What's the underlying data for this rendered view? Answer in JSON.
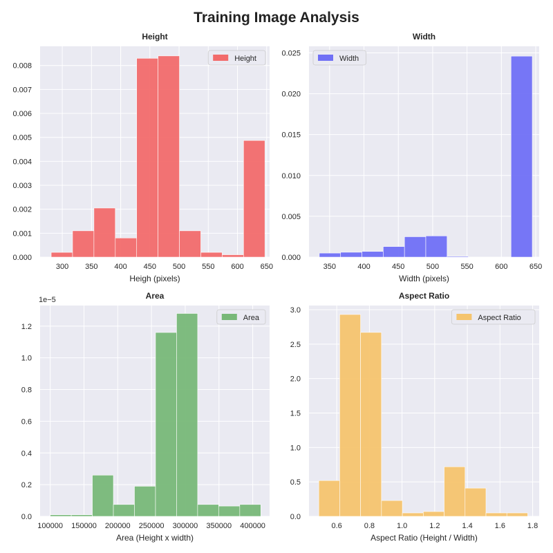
{
  "suptitle": "Training Image Analysis",
  "chart_data": [
    {
      "type": "bar",
      "title": "Height",
      "xlabel": "Heigh (pixels)",
      "ylabel": "",
      "legend": "Height",
      "legend_position": "top-right",
      "color": "#f26b6b",
      "grid": true,
      "xlim": [
        262,
        655
      ],
      "ylim": [
        0,
        0.0088
      ],
      "xticks": [
        300,
        350,
        400,
        450,
        500,
        550,
        600,
        650
      ],
      "xtick_labels": [
        "300",
        "350",
        "400",
        "450",
        "500",
        "550",
        "600",
        "650"
      ],
      "yticks": [
        0,
        0.001,
        0.002,
        0.003,
        0.004,
        0.005,
        0.006,
        0.007,
        0.008
      ],
      "ytick_labels": [
        "0.000",
        "0.001",
        "0.002",
        "0.003",
        "0.004",
        "0.005",
        "0.006",
        "0.007",
        "0.008"
      ],
      "y_offset_label": "",
      "bin_edges": [
        281,
        317.6,
        354.2,
        390.8,
        427.4,
        464,
        500.6,
        537.2,
        573.8,
        610.4,
        647
      ],
      "values": [
        0.0002,
        0.0011,
        0.00205,
        0.0008,
        0.0083,
        0.0084,
        0.0011,
        0.0002,
        0.0001,
        0.00487
      ]
    },
    {
      "type": "bar",
      "title": "Width",
      "xlabel": "Width (pixels)",
      "ylabel": "",
      "legend": "Width",
      "legend_position": "top-left",
      "color": "#7070f5",
      "grid": true,
      "xlim": [
        320,
        655
      ],
      "ylim": [
        0,
        0.0258
      ],
      "xticks": [
        350,
        400,
        450,
        500,
        550,
        600,
        650
      ],
      "xtick_labels": [
        "350",
        "400",
        "450",
        "500",
        "550",
        "600",
        "650"
      ],
      "yticks": [
        0,
        0.005,
        0.01,
        0.015,
        0.02,
        0.025
      ],
      "ytick_labels": [
        "0.000",
        "0.005",
        "0.010",
        "0.015",
        "0.020",
        "0.025"
      ],
      "y_offset_label": "",
      "bin_edges": [
        335,
        366,
        397,
        428,
        459,
        490,
        521,
        552,
        583,
        614,
        645
      ],
      "values": [
        0.0005,
        0.0006,
        0.0007,
        0.0013,
        0.0025,
        0.0026,
        0.0001,
        0,
        0,
        0.0246
      ]
    },
    {
      "type": "bar",
      "title": "Area",
      "xlabel": "Area (Height x width)",
      "ylabel": "",
      "legend": "Area",
      "legend_position": "top-right",
      "color": "#78b878",
      "grid": true,
      "xlim": [
        85000,
        425000
      ],
      "ylim": [
        0,
        1.33
      ],
      "xticks": [
        100000,
        150000,
        200000,
        250000,
        300000,
        350000,
        400000
      ],
      "xtick_labels": [
        "100000",
        "150000",
        "200000",
        "250000",
        "300000",
        "350000",
        "400000"
      ],
      "yticks": [
        0,
        0.2,
        0.4,
        0.6,
        0.8,
        1.0,
        1.2
      ],
      "ytick_labels": [
        "0.0",
        "0.2",
        "0.4",
        "0.6",
        "0.8",
        "1.0",
        "1.2"
      ],
      "y_offset_label": "1e−5",
      "bin_edges": [
        100000,
        131200,
        162400,
        193600,
        224800,
        256000,
        287200,
        318400,
        349600,
        380800,
        412000
      ],
      "values": [
        0.01,
        0.01,
        0.26,
        0.075,
        0.19,
        1.16,
        1.28,
        0.075,
        0.065,
        0.075
      ]
    },
    {
      "type": "bar",
      "title": "Aspect Ratio",
      "xlabel": "Aspect Ratio (Height / Width)",
      "ylabel": "",
      "legend": "Aspect Ratio",
      "legend_position": "top-right",
      "color": "#f5c46e",
      "grid": true,
      "xlim": [
        0.43,
        1.84
      ],
      "ylim": [
        0,
        3.06
      ],
      "xticks": [
        0.6,
        0.8,
        1.0,
        1.2,
        1.4,
        1.6,
        1.8
      ],
      "xtick_labels": [
        "0.6",
        "0.8",
        "1.0",
        "1.2",
        "1.4",
        "1.6",
        "1.8"
      ],
      "yticks": [
        0,
        0.5,
        1.0,
        1.5,
        2.0,
        2.5,
        3.0
      ],
      "ytick_labels": [
        "0.0",
        "0.5",
        "1.0",
        "1.5",
        "2.0",
        "2.5",
        "3.0"
      ],
      "y_offset_label": "",
      "bin_edges": [
        0.49,
        0.618,
        0.746,
        0.874,
        1.002,
        1.13,
        1.258,
        1.386,
        1.514,
        1.642,
        1.77
      ],
      "values": [
        0.52,
        2.93,
        2.67,
        0.23,
        0.05,
        0.07,
        0.72,
        0.41,
        0.05,
        0.05
      ]
    }
  ]
}
